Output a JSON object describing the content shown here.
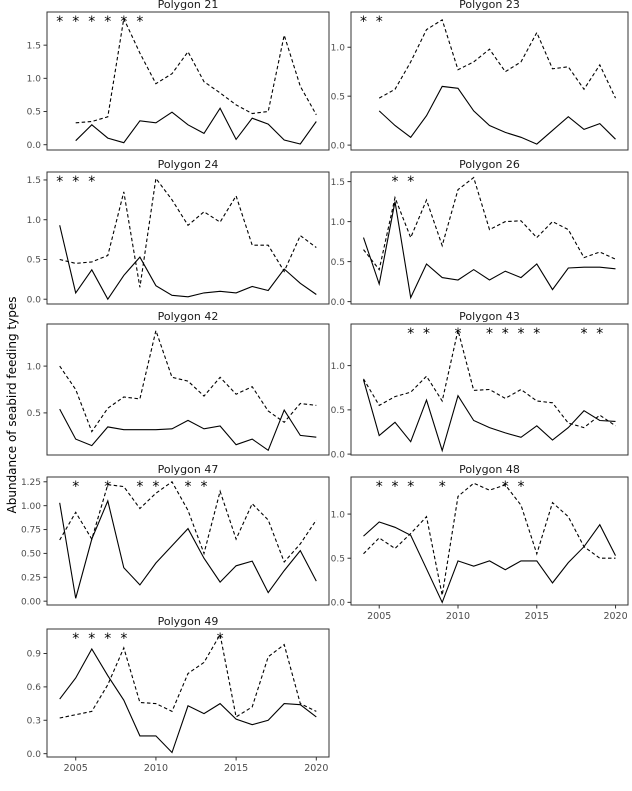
{
  "figure": {
    "ylabel": "Abundance of seabird feeding types",
    "background": "#ffffff",
    "line_color": "#000000",
    "panel_border_color": "#333333",
    "tick_label_color": "#4d4d4d",
    "title_color": "#1a1a1a"
  },
  "x_axis": {
    "tick_labels": [
      "2005",
      "2010",
      "2015",
      "2020"
    ],
    "tick_years": [
      2005,
      2010,
      2015,
      2020
    ]
  },
  "chart_data": [
    {
      "type": "line",
      "title": "Polygon 21",
      "row": 0,
      "col": 0,
      "xlim": [
        2004,
        2020
      ],
      "ylim": [
        -0.08,
        2.0
      ],
      "ytick_labels": [
        "0.0",
        "0.5",
        "1.0",
        "1.5"
      ],
      "ytick_values": [
        0,
        0.5,
        1.0,
        1.5
      ],
      "significance_years": [
        2004,
        2005,
        2006,
        2007,
        2008,
        2009
      ],
      "show_x_labels": false,
      "series": [
        {
          "name": "feeding-type-solid",
          "style": "solid",
          "values": [
            null,
            0.06,
            0.3,
            0.1,
            0.03,
            0.36,
            0.33,
            0.49,
            0.3,
            0.17,
            0.55,
            0.08,
            0.4,
            0.31,
            0.07,
            0.01,
            0.35
          ]
        },
        {
          "name": "feeding-type-dashed",
          "style": "dashed",
          "values": [
            null,
            0.33,
            0.35,
            0.42,
            1.9,
            1.38,
            0.92,
            1.07,
            1.4,
            0.95,
            0.78,
            0.6,
            0.47,
            0.5,
            1.65,
            0.88,
            0.45
          ]
        }
      ]
    },
    {
      "type": "line",
      "title": "Polygon 23",
      "row": 0,
      "col": 1,
      "xlim": [
        2004,
        2020
      ],
      "ylim": [
        -0.05,
        1.36
      ],
      "ytick_labels": [
        "0.0",
        "0.5",
        "1.0"
      ],
      "ytick_values": [
        0,
        0.5,
        1.0
      ],
      "significance_years": [
        2004,
        2005
      ],
      "show_x_labels": false,
      "series": [
        {
          "name": "feeding-type-solid",
          "style": "solid",
          "values": [
            null,
            0.35,
            0.2,
            0.08,
            0.3,
            0.6,
            0.58,
            0.35,
            0.2,
            0.13,
            0.08,
            0.01,
            0.15,
            0.29,
            0.16,
            0.22,
            0.06
          ]
        },
        {
          "name": "feeding-type-dashed",
          "style": "dashed",
          "values": [
            null,
            0.48,
            0.57,
            0.85,
            1.18,
            1.28,
            0.77,
            0.85,
            0.98,
            0.75,
            0.85,
            1.15,
            0.78,
            0.8,
            0.57,
            0.82,
            0.48
          ]
        }
      ]
    },
    {
      "type": "line",
      "title": "Polygon 24",
      "row": 1,
      "col": 0,
      "xlim": [
        2004,
        2020
      ],
      "ylim": [
        -0.06,
        1.6
      ],
      "ytick_labels": [
        "0.0",
        "0.5",
        "1.0",
        "1.5"
      ],
      "ytick_values": [
        0,
        0.5,
        1.0,
        1.5
      ],
      "significance_years": [
        2004,
        2005,
        2006
      ],
      "show_x_labels": false,
      "series": [
        {
          "name": "feeding-type-solid",
          "style": "solid",
          "values": [
            0.93,
            0.08,
            0.37,
            0.0,
            0.3,
            0.53,
            0.17,
            0.05,
            0.03,
            0.08,
            0.1,
            0.08,
            0.16,
            0.11,
            0.38,
            0.2,
            0.06
          ]
        },
        {
          "name": "feeding-type-dashed",
          "style": "dashed",
          "values": [
            0.5,
            0.45,
            0.47,
            0.55,
            1.35,
            0.15,
            1.52,
            1.25,
            0.93,
            1.1,
            0.97,
            1.3,
            0.68,
            0.68,
            0.35,
            0.8,
            0.65
          ]
        }
      ]
    },
    {
      "type": "line",
      "title": "Polygon 26",
      "row": 1,
      "col": 1,
      "xlim": [
        2004,
        2020
      ],
      "ylim": [
        -0.03,
        1.62
      ],
      "ytick_labels": [
        "0.0",
        "0.5",
        "1.0",
        "1.5"
      ],
      "ytick_values": [
        0,
        0.5,
        1.0,
        1.5
      ],
      "significance_years": [
        2006,
        2007
      ],
      "show_x_labels": false,
      "series": [
        {
          "name": "feeding-type-solid",
          "style": "solid",
          "values": [
            0.8,
            0.22,
            1.25,
            0.05,
            0.47,
            0.3,
            0.27,
            0.4,
            0.27,
            0.38,
            0.3,
            0.47,
            0.15,
            0.42,
            0.43,
            0.43,
            0.41
          ]
        },
        {
          "name": "feeding-type-dashed",
          "style": "dashed",
          "values": [
            0.65,
            0.4,
            1.3,
            0.8,
            1.27,
            0.7,
            1.4,
            1.55,
            0.9,
            1.0,
            1.01,
            0.8,
            1.0,
            0.9,
            0.55,
            0.62,
            0.53
          ]
        }
      ]
    },
    {
      "type": "line",
      "title": "Polygon 42",
      "row": 2,
      "col": 0,
      "xlim": [
        2004,
        2020
      ],
      "ylim": [
        0.05,
        1.45
      ],
      "ytick_labels": [
        "0.5",
        "1.0"
      ],
      "ytick_values": [
        0.5,
        1.0
      ],
      "significance_years": [],
      "show_x_labels": false,
      "series": [
        {
          "name": "feeding-type-solid",
          "style": "solid",
          "values": [
            0.54,
            0.22,
            0.15,
            0.35,
            0.32,
            0.32,
            0.32,
            0.33,
            0.42,
            0.33,
            0.36,
            0.16,
            0.22,
            0.1,
            0.53,
            0.26,
            0.24
          ]
        },
        {
          "name": "feeding-type-dashed",
          "style": "dashed",
          "values": [
            1.0,
            0.75,
            0.3,
            0.55,
            0.67,
            0.65,
            1.38,
            0.88,
            0.84,
            0.68,
            0.88,
            0.7,
            0.78,
            0.52,
            0.4,
            0.6,
            0.58
          ]
        }
      ]
    },
    {
      "type": "line",
      "title": "Polygon 43",
      "row": 2,
      "col": 1,
      "xlim": [
        2004,
        2020
      ],
      "ylim": [
        -0.01,
        1.47
      ],
      "ytick_labels": [
        "0.0",
        "0.5",
        "1.0"
      ],
      "ytick_values": [
        0,
        0.5,
        1.0
      ],
      "significance_years": [
        2007,
        2008,
        2010,
        2012,
        2013,
        2014,
        2015,
        2018,
        2019
      ],
      "show_x_labels": false,
      "series": [
        {
          "name": "feeding-type-solid",
          "style": "solid",
          "values": [
            0.84,
            0.21,
            0.36,
            0.14,
            0.61,
            0.04,
            0.66,
            0.38,
            0.3,
            0.24,
            0.19,
            0.32,
            0.16,
            0.3,
            0.49,
            0.38,
            0.37
          ]
        },
        {
          "name": "feeding-type-dashed",
          "style": "dashed",
          "values": [
            0.85,
            0.55,
            0.65,
            0.7,
            0.88,
            0.6,
            1.4,
            0.72,
            0.73,
            0.63,
            0.73,
            0.6,
            0.58,
            0.35,
            0.3,
            0.44,
            0.32
          ]
        }
      ]
    },
    {
      "type": "line",
      "title": "Polygon 47",
      "row": 3,
      "col": 0,
      "xlim": [
        2004,
        2020
      ],
      "ylim": [
        -0.04,
        1.3
      ],
      "ytick_labels": [
        "0.00",
        "0.25",
        "0.50",
        "0.75",
        "1.00",
        "1.25"
      ],
      "ytick_values": [
        0,
        0.25,
        0.5,
        0.75,
        1.0,
        1.25
      ],
      "significance_years": [
        2005,
        2007,
        2009,
        2010,
        2012,
        2013
      ],
      "show_x_labels": false,
      "series": [
        {
          "name": "feeding-type-solid",
          "style": "solid",
          "values": [
            1.03,
            0.03,
            0.65,
            1.05,
            0.35,
            0.17,
            0.4,
            0.58,
            0.76,
            0.45,
            0.2,
            0.37,
            0.42,
            0.09,
            0.32,
            0.53,
            0.21
          ]
        },
        {
          "name": "feeding-type-dashed",
          "style": "dashed",
          "values": [
            0.64,
            0.93,
            0.65,
            1.22,
            1.2,
            0.97,
            1.13,
            1.25,
            0.95,
            0.5,
            1.15,
            0.65,
            1.02,
            0.85,
            0.41,
            0.6,
            0.85
          ]
        }
      ]
    },
    {
      "type": "line",
      "title": "Polygon 48",
      "row": 3,
      "col": 1,
      "xlim": [
        2004,
        2020
      ],
      "ylim": [
        -0.03,
        1.42
      ],
      "ytick_labels": [
        "0.0",
        "0.5",
        "1.0"
      ],
      "ytick_values": [
        0,
        0.5,
        1.0
      ],
      "significance_years": [
        2005,
        2006,
        2007,
        2009,
        2013,
        2014
      ],
      "show_x_labels": true,
      "series": [
        {
          "name": "feeding-type-solid",
          "style": "solid",
          "values": [
            0.75,
            0.91,
            0.85,
            0.76,
            0.38,
            0.0,
            0.47,
            0.41,
            0.47,
            0.37,
            0.47,
            0.47,
            0.22,
            0.45,
            0.63,
            0.88,
            0.53
          ]
        },
        {
          "name": "feeding-type-dashed",
          "style": "dashed",
          "values": [
            0.55,
            0.73,
            0.61,
            0.78,
            0.97,
            0.08,
            1.2,
            1.35,
            1.27,
            1.33,
            1.1,
            0.55,
            1.13,
            0.97,
            0.63,
            0.5,
            0.5
          ]
        }
      ]
    },
    {
      "type": "line",
      "title": "Polygon 49",
      "row": 4,
      "col": 0,
      "xlim": [
        2004,
        2020
      ],
      "ylim": [
        -0.03,
        1.12
      ],
      "ytick_labels": [
        "0.0",
        "0.3",
        "0.6",
        "0.9"
      ],
      "ytick_values": [
        0,
        0.3,
        0.6,
        0.9
      ],
      "significance_years": [
        2005,
        2006,
        2007,
        2008,
        2014
      ],
      "show_x_labels": true,
      "series": [
        {
          "name": "feeding-type-solid",
          "style": "solid",
          "values": [
            0.49,
            0.68,
            0.94,
            0.7,
            0.48,
            0.16,
            0.16,
            0.01,
            0.43,
            0.36,
            0.45,
            0.31,
            0.26,
            0.3,
            0.45,
            0.44,
            0.33
          ]
        },
        {
          "name": "feeding-type-dashed",
          "style": "dashed",
          "values": [
            0.32,
            0.35,
            0.38,
            0.62,
            0.95,
            0.46,
            0.45,
            0.38,
            0.72,
            0.82,
            1.07,
            0.33,
            0.42,
            0.87,
            0.98,
            0.45,
            0.38
          ]
        }
      ]
    }
  ]
}
